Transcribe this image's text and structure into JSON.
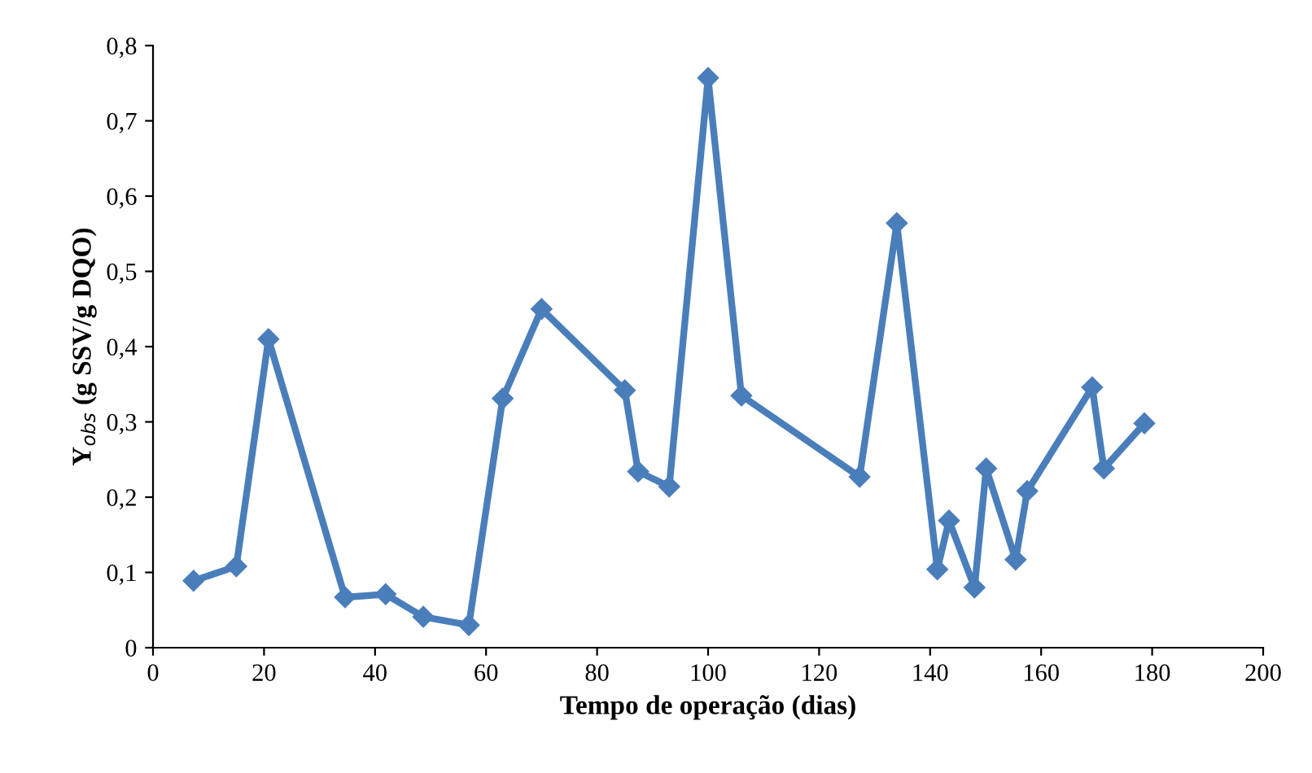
{
  "chart_data": {
    "type": "line",
    "xlabel": "Tempo de operação (dias)",
    "ylabel": "Y$_{obs}$ (g SSV/g DQO)",
    "x": [
      7.3,
      15,
      20.8,
      34.6,
      41.9,
      48.7,
      56.9,
      63,
      70,
      85,
      87.4,
      93,
      100,
      106,
      127.3,
      134,
      141.3,
      143.4,
      148,
      150.1,
      155.4,
      157.5,
      169.2,
      171.3,
      178.6
    ],
    "series": [
      {
        "color": "#4a7ebb",
        "values": [
          0.089,
          0.108,
          0.41,
          0.067,
          0.071,
          0.041,
          0.03,
          0.331,
          0.45,
          0.342,
          0.234,
          0.214,
          0.757,
          0.335,
          0.227,
          0.564,
          0.104,
          0.169,
          0.08,
          0.238,
          0.117,
          0.208,
          0.346,
          0.238,
          0.298
        ]
      }
    ],
    "xlim": [
      0,
      200
    ],
    "xticks": [
      0,
      20,
      40,
      60,
      80,
      100,
      120,
      140,
      160,
      180,
      200
    ],
    "ylim": [
      0,
      0.8
    ],
    "yticks": [
      0,
      {
        "value": 0.1,
        "label": "0,1"
      },
      {
        "value": 0.2,
        "label": "0,2"
      },
      {
        "value": 0.3,
        "label": "0,3"
      },
      {
        "value": 0.4,
        "label": "0,4"
      },
      {
        "value": 0.5,
        "label": "0,5"
      },
      {
        "value": 0.6,
        "label": "0,6"
      },
      {
        "value": 0.7,
        "label": "0,7"
      },
      {
        "value": 0.8,
        "label": "0,8"
      }
    ],
    "marker": "diamond",
    "line_style": "solid",
    "grid": false,
    "legend": false
  }
}
